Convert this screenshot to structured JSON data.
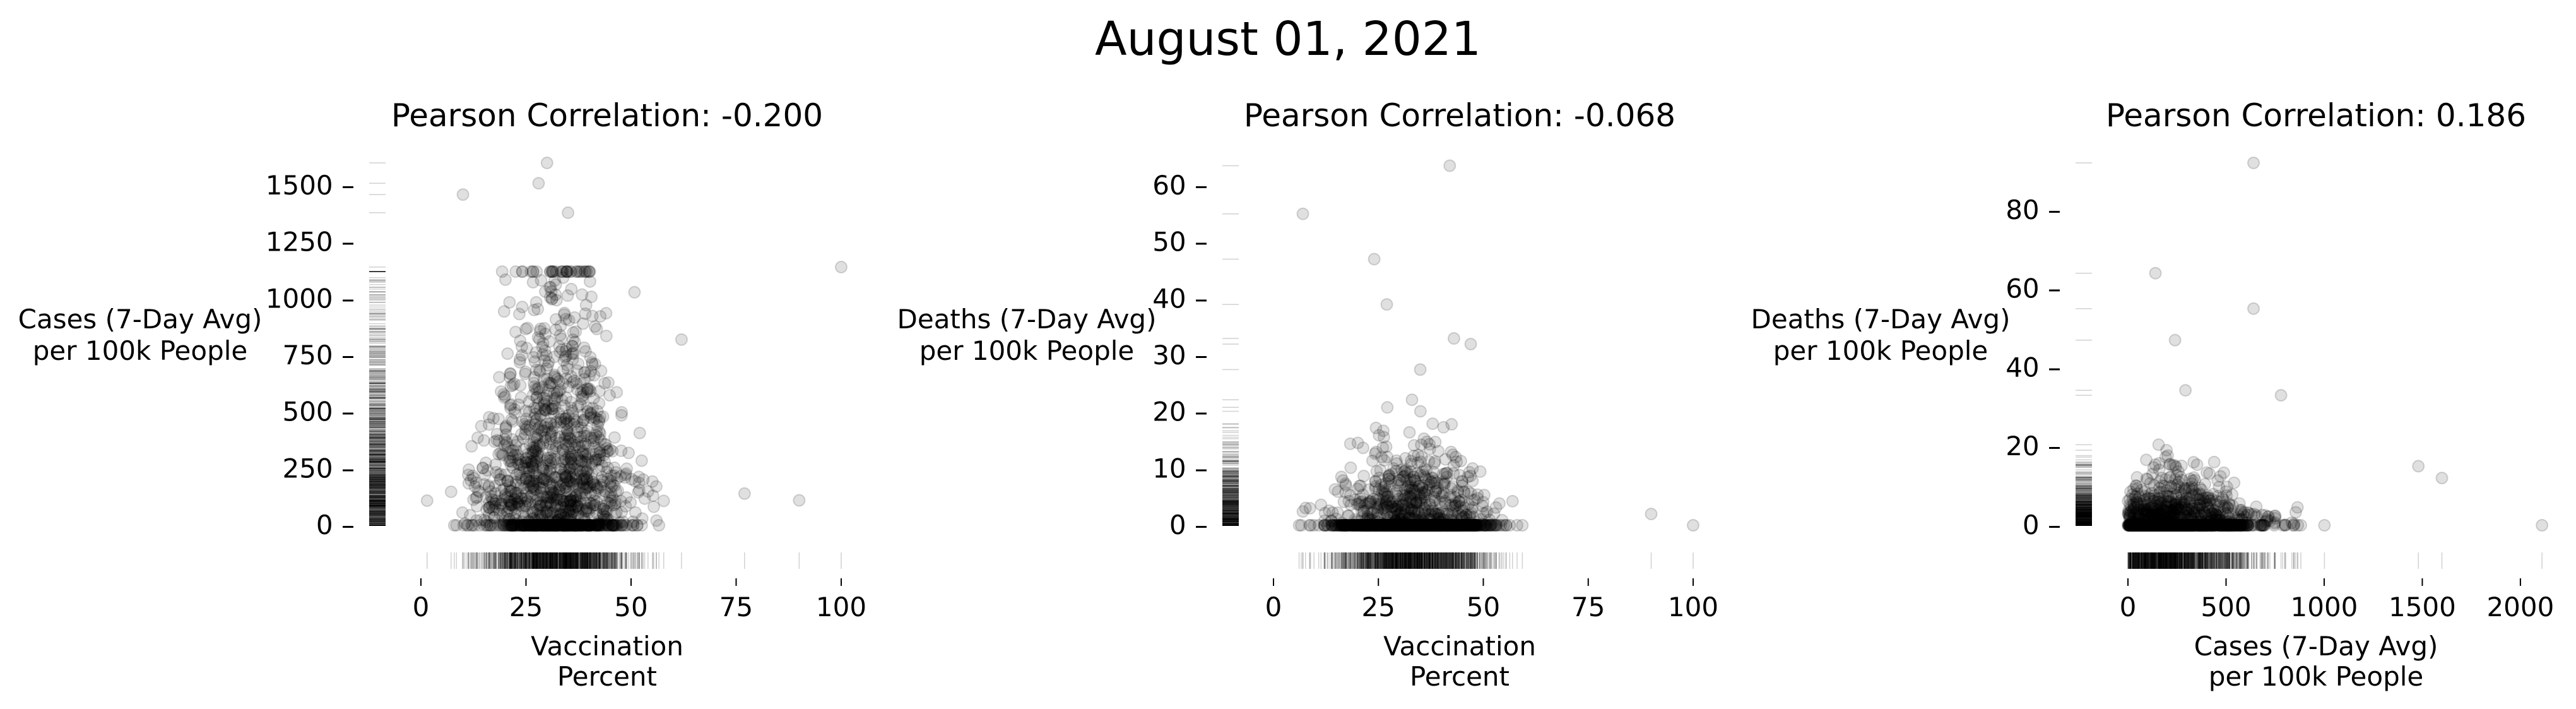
{
  "figure_title": "August 01, 2021",
  "chart_data": [
    {
      "type": "scatter",
      "title": "Pearson Correlation: -0.200",
      "xlabel": [
        "Vaccination",
        "Percent"
      ],
      "ylabel": [
        "Cases (7-Day Avg)",
        "per 100k People"
      ],
      "xlim": [
        0,
        100
      ],
      "ylim": [
        0,
        1600
      ],
      "xticks": [
        0,
        25,
        50,
        75,
        100
      ],
      "yticks": [
        0,
        250,
        500,
        750,
        1000,
        1250,
        1500
      ],
      "grid": false,
      "rug": true,
      "marker_color": "#000000",
      "marker_alpha": 0.12,
      "highlight_points": [
        {
          "x": 30,
          "y": 1600
        },
        {
          "x": 10,
          "y": 1460
        },
        {
          "x": 100,
          "y": 1140
        },
        {
          "x": 28,
          "y": 1510
        },
        {
          "x": 35,
          "y": 1380
        },
        {
          "x": 90,
          "y": 110
        },
        {
          "x": 62,
          "y": 820
        },
        {
          "x": 77,
          "y": 140
        }
      ],
      "model": {
        "center_x": 32,
        "spread_x": 12,
        "peak_y": 620,
        "zero_share": 0.22,
        "n": 1400
      }
    },
    {
      "type": "scatter",
      "title": "Pearson Correlation: -0.068",
      "xlabel": [
        "Vaccination",
        "Percent"
      ],
      "ylabel": [
        "Deaths (7-Day Avg)",
        "per 100k People"
      ],
      "xlim": [
        0,
        100
      ],
      "ylim": [
        0,
        64
      ],
      "xticks": [
        0,
        25,
        50,
        75,
        100
      ],
      "yticks": [
        0,
        10,
        20,
        30,
        40,
        50,
        60
      ],
      "grid": false,
      "rug": true,
      "marker_color": "#000000",
      "marker_alpha": 0.12,
      "highlight_points": [
        {
          "x": 42,
          "y": 63.5
        },
        {
          "x": 7,
          "y": 55
        },
        {
          "x": 24,
          "y": 47
        },
        {
          "x": 27,
          "y": 39
        },
        {
          "x": 43,
          "y": 33
        },
        {
          "x": 47,
          "y": 32
        },
        {
          "x": 90,
          "y": 2
        },
        {
          "x": 100,
          "y": 0
        }
      ],
      "model": {
        "center_x": 33,
        "spread_x": 13,
        "peak_y": 9,
        "zero_share": 0.6,
        "n": 1400
      }
    },
    {
      "type": "scatter",
      "title": "Pearson Correlation: 0.186",
      "xlabel": [
        "Cases (7-Day Avg)",
        "per 100k People"
      ],
      "ylabel": [
        "Deaths (7-Day Avg)",
        "per 100k People"
      ],
      "xlim": [
        0,
        2100
      ],
      "ylim": [
        0,
        92
      ],
      "xticks": [
        0,
        500,
        1000,
        1500,
        2000
      ],
      "yticks": [
        0,
        20,
        40,
        60,
        80
      ],
      "grid": false,
      "rug": true,
      "marker_color": "#000000",
      "marker_alpha": 0.12,
      "highlight_points": [
        {
          "x": 640,
          "y": 92
        },
        {
          "x": 140,
          "y": 64
        },
        {
          "x": 640,
          "y": 55
        },
        {
          "x": 240,
          "y": 47
        },
        {
          "x": 2110,
          "y": 0
        },
        {
          "x": 1600,
          "y": 12
        },
        {
          "x": 1480,
          "y": 15
        },
        {
          "x": 780,
          "y": 33
        }
      ],
      "model": {
        "center_x": 250,
        "spread_x": 260,
        "peak_y": 8,
        "zero_share": 0.6,
        "n": 1400
      }
    }
  ]
}
